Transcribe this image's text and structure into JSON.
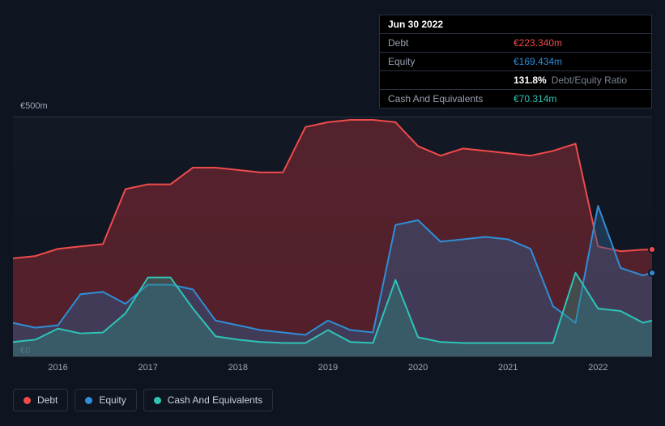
{
  "chart": {
    "type": "area",
    "background_color": "#0e1420",
    "grid_color": "#2a3240",
    "xlim": [
      2015.5,
      2022.6
    ],
    "ylim": [
      0,
      500
    ],
    "y_unit_prefix": "€",
    "y_unit_suffix": "m",
    "y_ticks": [
      {
        "value": 500,
        "label": "€500m"
      },
      {
        "value": 0,
        "label": "€0"
      }
    ],
    "x_ticks": [
      {
        "value": 2016,
        "label": "2016"
      },
      {
        "value": 2017,
        "label": "2017"
      },
      {
        "value": 2018,
        "label": "2018"
      },
      {
        "value": 2019,
        "label": "2019"
      },
      {
        "value": 2020,
        "label": "2020"
      },
      {
        "value": 2021,
        "label": "2021"
      },
      {
        "value": 2022,
        "label": "2022"
      }
    ],
    "label_fontsize": 11,
    "series": {
      "debt": {
        "label": "Debt",
        "color": "#ef4b4b",
        "fill_color": "rgba(167,47,55,0.45)",
        "line_width": 2,
        "data": [
          {
            "x": 2015.5,
            "y": 205
          },
          {
            "x": 2015.75,
            "y": 210
          },
          {
            "x": 2016.0,
            "y": 225
          },
          {
            "x": 2016.25,
            "y": 230
          },
          {
            "x": 2016.5,
            "y": 235
          },
          {
            "x": 2016.75,
            "y": 350
          },
          {
            "x": 2017.0,
            "y": 360
          },
          {
            "x": 2017.25,
            "y": 360
          },
          {
            "x": 2017.5,
            "y": 395
          },
          {
            "x": 2017.75,
            "y": 395
          },
          {
            "x": 2018.0,
            "y": 390
          },
          {
            "x": 2018.25,
            "y": 385
          },
          {
            "x": 2018.5,
            "y": 385
          },
          {
            "x": 2018.75,
            "y": 480
          },
          {
            "x": 2019.0,
            "y": 490
          },
          {
            "x": 2019.25,
            "y": 495
          },
          {
            "x": 2019.5,
            "y": 495
          },
          {
            "x": 2019.75,
            "y": 490
          },
          {
            "x": 2020.0,
            "y": 440
          },
          {
            "x": 2020.25,
            "y": 420
          },
          {
            "x": 2020.5,
            "y": 435
          },
          {
            "x": 2020.75,
            "y": 430
          },
          {
            "x": 2021.0,
            "y": 425
          },
          {
            "x": 2021.25,
            "y": 420
          },
          {
            "x": 2021.5,
            "y": 430
          },
          {
            "x": 2021.75,
            "y": 445
          },
          {
            "x": 2022.0,
            "y": 230
          },
          {
            "x": 2022.25,
            "y": 220
          },
          {
            "x": 2022.5,
            "y": 223.34
          },
          {
            "x": 2022.6,
            "y": 223.34
          }
        ]
      },
      "equity": {
        "label": "Equity",
        "color": "#2f8ed6",
        "fill_color": "rgba(47,94,142,0.45)",
        "line_width": 2,
        "data": [
          {
            "x": 2015.5,
            "y": 70
          },
          {
            "x": 2015.75,
            "y": 60
          },
          {
            "x": 2016.0,
            "y": 65
          },
          {
            "x": 2016.25,
            "y": 130
          },
          {
            "x": 2016.5,
            "y": 135
          },
          {
            "x": 2016.75,
            "y": 110
          },
          {
            "x": 2017.0,
            "y": 150
          },
          {
            "x": 2017.25,
            "y": 150
          },
          {
            "x": 2017.5,
            "y": 140
          },
          {
            "x": 2017.75,
            "y": 75
          },
          {
            "x": 2018.0,
            "y": 65
          },
          {
            "x": 2018.25,
            "y": 55
          },
          {
            "x": 2018.5,
            "y": 50
          },
          {
            "x": 2018.75,
            "y": 45
          },
          {
            "x": 2019.0,
            "y": 75
          },
          {
            "x": 2019.25,
            "y": 55
          },
          {
            "x": 2019.5,
            "y": 50
          },
          {
            "x": 2019.75,
            "y": 275
          },
          {
            "x": 2020.0,
            "y": 285
          },
          {
            "x": 2020.25,
            "y": 240
          },
          {
            "x": 2020.5,
            "y": 245
          },
          {
            "x": 2020.75,
            "y": 250
          },
          {
            "x": 2021.0,
            "y": 245
          },
          {
            "x": 2021.25,
            "y": 225
          },
          {
            "x": 2021.5,
            "y": 105
          },
          {
            "x": 2021.75,
            "y": 70
          },
          {
            "x": 2022.0,
            "y": 315
          },
          {
            "x": 2022.25,
            "y": 185
          },
          {
            "x": 2022.5,
            "y": 169.434
          },
          {
            "x": 2022.6,
            "y": 175
          }
        ]
      },
      "cash": {
        "label": "Cash And Equivalents",
        "color": "#2ec4b6",
        "fill_color": "rgba(46,140,130,0.40)",
        "line_width": 2,
        "data": [
          {
            "x": 2015.5,
            "y": 30
          },
          {
            "x": 2015.75,
            "y": 35
          },
          {
            "x": 2016.0,
            "y": 58
          },
          {
            "x": 2016.25,
            "y": 48
          },
          {
            "x": 2016.5,
            "y": 50
          },
          {
            "x": 2016.75,
            "y": 90
          },
          {
            "x": 2017.0,
            "y": 165
          },
          {
            "x": 2017.25,
            "y": 165
          },
          {
            "x": 2017.5,
            "y": 100
          },
          {
            "x": 2017.75,
            "y": 42
          },
          {
            "x": 2018.0,
            "y": 35
          },
          {
            "x": 2018.25,
            "y": 30
          },
          {
            "x": 2018.5,
            "y": 28
          },
          {
            "x": 2018.75,
            "y": 28
          },
          {
            "x": 2019.0,
            "y": 55
          },
          {
            "x": 2019.25,
            "y": 30
          },
          {
            "x": 2019.5,
            "y": 28
          },
          {
            "x": 2019.75,
            "y": 160
          },
          {
            "x": 2020.0,
            "y": 40
          },
          {
            "x": 2020.25,
            "y": 30
          },
          {
            "x": 2020.5,
            "y": 28
          },
          {
            "x": 2020.75,
            "y": 28
          },
          {
            "x": 2021.0,
            "y": 28
          },
          {
            "x": 2021.25,
            "y": 28
          },
          {
            "x": 2021.5,
            "y": 28
          },
          {
            "x": 2021.75,
            "y": 175
          },
          {
            "x": 2022.0,
            "y": 100
          },
          {
            "x": 2022.25,
            "y": 95
          },
          {
            "x": 2022.5,
            "y": 70.314
          },
          {
            "x": 2022.6,
            "y": 75
          }
        ]
      }
    },
    "end_markers": [
      {
        "series": "debt",
        "color": "#ef4b4b"
      },
      {
        "series": "equity",
        "color": "#2f8ed6"
      }
    ]
  },
  "tooltip": {
    "date": "Jun 30 2022",
    "rows": {
      "debt": {
        "label": "Debt",
        "value": "€223.340m"
      },
      "equity": {
        "label": "Equity",
        "value": "€169.434m"
      },
      "ratio": {
        "value": "131.8%",
        "label": "Debt/Equity Ratio"
      },
      "cash": {
        "label": "Cash And Equivalents",
        "value": "€70.314m"
      }
    }
  },
  "legend": {
    "items": [
      {
        "key": "debt",
        "label": "Debt",
        "color": "#ef4b4b"
      },
      {
        "key": "equity",
        "label": "Equity",
        "color": "#2f8ed6"
      },
      {
        "key": "cash",
        "label": "Cash And Equivalents",
        "color": "#2ec4b6"
      }
    ]
  }
}
